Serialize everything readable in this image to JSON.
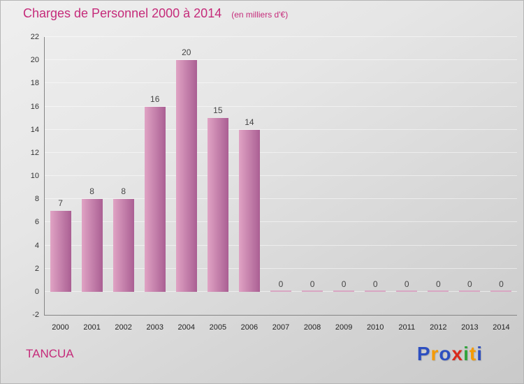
{
  "header": {
    "title": "Charges de Personnel 2000 à 2014",
    "subtitle": "(en milliers d'€)"
  },
  "colors": {
    "accent_pink": "#c52b7a",
    "bar_light": "#e0a3c4",
    "bar_dark": "#aa5f93",
    "zero_dash": "#d9a6c3",
    "axis": "#858585",
    "tick_text": "#333333",
    "value_text": "#444444"
  },
  "chart_data": {
    "type": "bar",
    "title": "Charges de Personnel 2000 à 2014",
    "subtitle": "(en milliers d'€)",
    "categories": [
      "2000",
      "2001",
      "2002",
      "2003",
      "2004",
      "2005",
      "2006",
      "2007",
      "2008",
      "2009",
      "2010",
      "2011",
      "2012",
      "2013",
      "2014"
    ],
    "values": [
      7,
      8,
      8,
      16,
      20,
      15,
      14,
      0,
      0,
      0,
      0,
      0,
      0,
      0,
      0
    ],
    "xlabel": "",
    "ylabel": "",
    "ylim": [
      -2,
      22
    ],
    "ytick_step": 2,
    "grid": true,
    "legend": "none",
    "value_labels": true
  },
  "footer": {
    "company": "TANCUA",
    "logo_letters": [
      {
        "ch": "P",
        "color": "#2d4fc0"
      },
      {
        "ch": "r",
        "color": "#f59a00"
      },
      {
        "ch": "o",
        "color": "#2d4fc0"
      },
      {
        "ch": "x",
        "color": "#d92b1c"
      },
      {
        "ch": "i",
        "color": "#3aא0"
      },
      {
        "ch": "t",
        "color": "#f59a00"
      },
      {
        "ch": "i",
        "color": "#2d4fc0"
      }
    ]
  }
}
